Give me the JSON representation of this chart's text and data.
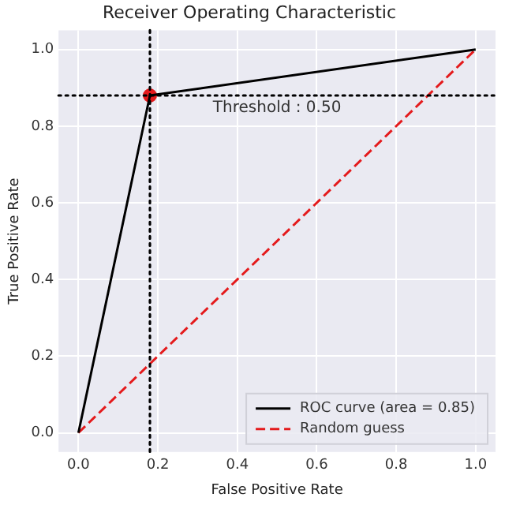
{
  "chart_data": {
    "type": "line",
    "title": "Receiver Operating Characteristic",
    "xlabel": "False Positive Rate",
    "ylabel": "True Positive Rate",
    "series": [
      {
        "name": "ROC curve (area = 0.85)",
        "color": "#000000",
        "x": [
          0,
          0.18,
          1
        ],
        "values": [
          0,
          0.88,
          1
        ],
        "line_style": "solid",
        "marker": "none"
      },
      {
        "name": "Random guess",
        "color": "#e41a1c",
        "x": [
          0,
          1
        ],
        "values": [
          0,
          1
        ],
        "line_style": "dashed",
        "marker": "none"
      },
      {
        "type": "scatter",
        "color": "#e41a1c",
        "x": [
          0.18
        ],
        "values": [
          0.88
        ],
        "marker": "circle"
      }
    ],
    "ref_lines": [
      {
        "axis": "x",
        "value": 0.18,
        "color": "#000000",
        "line_style": "dotted"
      },
      {
        "axis": "y",
        "value": 0.88,
        "color": "#000000",
        "line_style": "dotted"
      }
    ],
    "annotations": [
      "Threshold : 0.50"
    ],
    "xlim": [
      -0.05,
      1.05
    ],
    "ylim": [
      -0.05,
      1.05
    ],
    "xticks": [
      {
        "value": 0,
        "label": "0.0"
      },
      {
        "value": 0.2,
        "label": "0.2"
      },
      {
        "value": 0.4,
        "label": "0.4"
      },
      {
        "value": 0.6,
        "label": "0.6"
      },
      {
        "value": 0.8,
        "label": "0.8"
      },
      {
        "value": 1,
        "label": "1.0"
      }
    ],
    "yticks": [
      {
        "value": 0,
        "label": "0.0"
      },
      {
        "value": 0.2,
        "label": "0.2"
      },
      {
        "value": 0.4,
        "label": "0.4"
      },
      {
        "value": 0.6,
        "label": "0.6"
      },
      {
        "value": 0.8,
        "label": "0.8"
      },
      {
        "value": 1,
        "label": "1.0"
      }
    ],
    "grid": true,
    "legend": "bottom right"
  }
}
